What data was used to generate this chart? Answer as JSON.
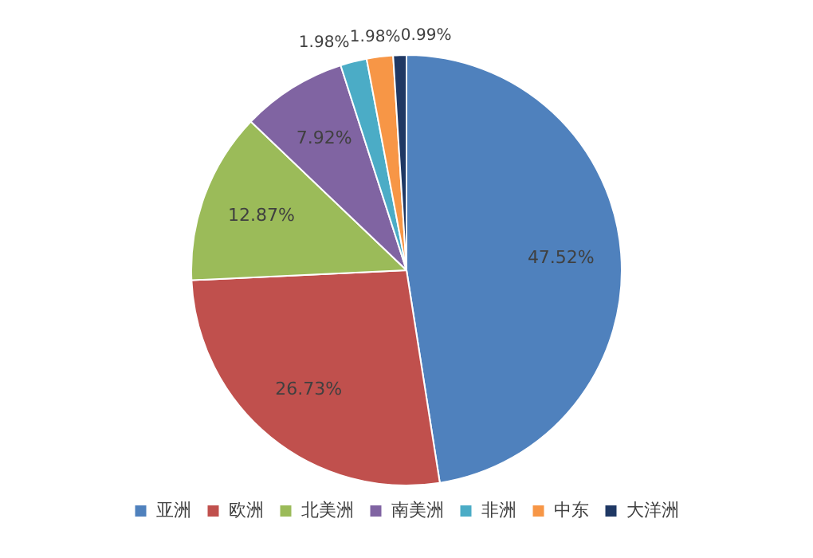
{
  "chart_data": {
    "type": "pie",
    "categories": [
      "亚洲",
      "欧洲",
      "北美洲",
      "南美洲",
      "非洲",
      "中东",
      "大洋洲"
    ],
    "values": [
      47.52,
      26.73,
      12.87,
      7.92,
      1.98,
      1.98,
      0.99
    ],
    "colors": [
      "#4f81bd",
      "#c0504d",
      "#9bbb59",
      "#8064a2",
      "#4bacc6",
      "#f79646",
      "#1f3864"
    ],
    "value_labels": [
      "47.52%",
      "26.73%",
      "12.87%",
      "7.92%",
      "1.98%",
      "1.98%",
      "0.99%"
    ],
    "legend": "bottom"
  }
}
